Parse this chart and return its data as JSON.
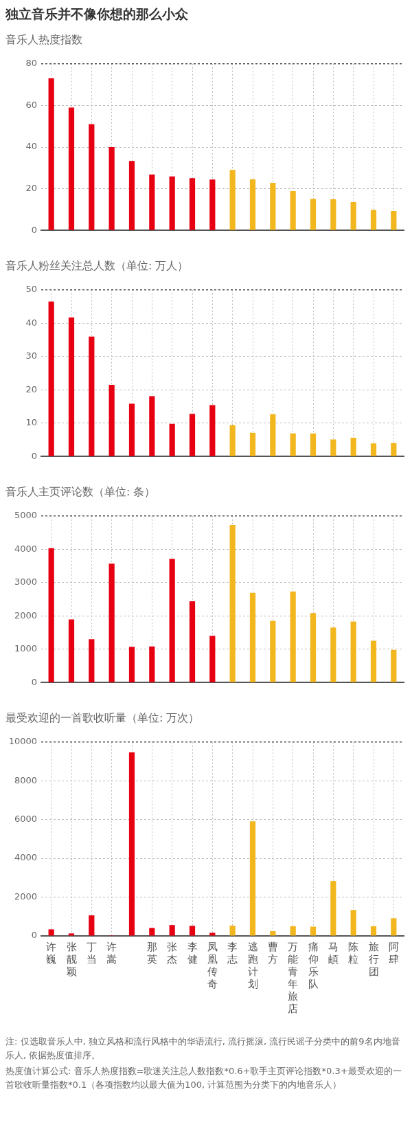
{
  "chart_data": [
    {
      "type": "bar",
      "title": "独立音乐并不像你想的那么小众",
      "subtitle": "音乐人热度指数",
      "categories": [
        "许巍",
        "张靓颖",
        "丁当",
        "许嵩",
        null,
        "那英",
        "张杰",
        "李健",
        "凤凰传奇",
        "李志",
        "逃跑计划",
        "曹方",
        "万能青年旅店",
        "痛仰乐队",
        "马頔",
        "陈粒",
        "旅行团",
        "阿肆"
      ],
      "values": [
        73,
        59,
        51,
        40,
        33.3,
        26.8,
        25.9,
        25.1,
        24.4,
        29,
        24.5,
        22.8,
        18.9,
        15.1,
        14.9,
        13.6,
        9.8,
        9.3
      ],
      "colors": [
        "#e60012",
        "#e60012",
        "#e60012",
        "#e60012",
        "#e60012",
        "#e60012",
        "#e60012",
        "#e60012",
        "#e60012",
        "#f2b61e",
        "#f2b61e",
        "#f2b61e",
        "#f2b61e",
        "#f2b61e",
        "#f2b61e",
        "#f2b61e",
        "#f2b61e",
        "#f2b61e"
      ],
      "ylim": [
        0,
        80
      ],
      "yticks": [
        0,
        20,
        40,
        60,
        80
      ],
      "grid": true,
      "tick_labels": "y"
    },
    {
      "type": "bar",
      "title": "音乐人粉丝关注总人数（单位: 万人）",
      "categories": [
        "许巍",
        "张靓颖",
        "丁当",
        "许嵩",
        null,
        "那英",
        "张杰",
        "李健",
        "凤凰传奇",
        "李志",
        "逃跑计划",
        "曹方",
        "万能青年旅店",
        "痛仰乐队",
        "马頔",
        "陈粒",
        "旅行团",
        "阿肆"
      ],
      "values": [
        46.5,
        41.7,
        36,
        21.5,
        15.8,
        18.1,
        9.8,
        12.8,
        15.4,
        9.4,
        7.1,
        12.7,
        6.9,
        6.9,
        5.1,
        5.6,
        3.9,
        4
      ],
      "colors": [
        "#e60012",
        "#e60012",
        "#e60012",
        "#e60012",
        "#e60012",
        "#e60012",
        "#e60012",
        "#e60012",
        "#e60012",
        "#f2b61e",
        "#f2b61e",
        "#f2b61e",
        "#f2b61e",
        "#f2b61e",
        "#f2b61e",
        "#f2b61e",
        "#f2b61e",
        "#f2b61e"
      ],
      "ylim": [
        0,
        50
      ],
      "yticks": [
        0,
        10,
        20,
        30,
        40,
        50
      ],
      "grid": true,
      "tick_labels": "y"
    },
    {
      "type": "bar",
      "title": "音乐人主页评论数（单位: 条）",
      "categories": [
        "许巍",
        "张靓颖",
        "丁当",
        "许嵩",
        null,
        "那英",
        "张杰",
        "李健",
        "凤凰传奇",
        "李志",
        "逃跑计划",
        "曹方",
        "万能青年旅店",
        "痛仰乐队",
        "马頔",
        "陈粒",
        "旅行团",
        "阿肆"
      ],
      "values": [
        4030,
        1890,
        1300,
        3570,
        1070,
        1080,
        3710,
        2440,
        1400,
        4730,
        2690,
        1850,
        2730,
        2080,
        1650,
        1830,
        1250,
        980
      ],
      "colors": [
        "#e60012",
        "#e60012",
        "#e60012",
        "#e60012",
        "#e60012",
        "#e60012",
        "#e60012",
        "#e60012",
        "#e60012",
        "#f2b61e",
        "#f2b61e",
        "#f2b61e",
        "#f2b61e",
        "#f2b61e",
        "#f2b61e",
        "#f2b61e",
        "#f2b61e",
        "#f2b61e"
      ],
      "ylim": [
        0,
        5000
      ],
      "yticks": [
        0,
        1000,
        2000,
        3000,
        4000,
        5000
      ],
      "grid": true,
      "tick_labels": "y"
    },
    {
      "type": "bar",
      "title": "最受欢迎的一首歌收听量（单位: 万次）",
      "categories": [
        "许巍",
        "张靓颖",
        "丁当",
        "许嵩",
        null,
        "那英",
        "张杰",
        "李健",
        "凤凰传奇",
        "李志",
        "逃跑计划",
        "曹方",
        "万能青年旅店",
        "痛仰乐队",
        "马頔",
        "陈粒",
        "旅行团",
        "阿肆"
      ],
      "values": [
        340,
        130,
        1060,
        30,
        9470,
        410,
        560,
        520,
        160,
        530,
        5910,
        250,
        500,
        480,
        2830,
        1340,
        500,
        910
      ],
      "colors": [
        "#e60012",
        "#e60012",
        "#e60012",
        "#e60012",
        "#e60012",
        "#e60012",
        "#e60012",
        "#e60012",
        "#e60012",
        "#f2b61e",
        "#f2b61e",
        "#f2b61e",
        "#f2b61e",
        "#f2b61e",
        "#f2b61e",
        "#f2b61e",
        "#f2b61e",
        "#f2b61e"
      ],
      "ylim": [
        0,
        10000
      ],
      "yticks": [
        0,
        2000,
        4000,
        6000,
        8000,
        10000
      ],
      "grid": true,
      "annotations": [
        "注: 仅选取音乐人中, 独立风格和流行风格中的华语流行, 流行摇滚, 流行民谣子分类中的前9名内地音乐人, 依据热度值排序。",
        "热度值计算公式: 音乐人热度指数=歌迷关注总人数指数*0.6+歌手主页评论指数*0.3+最受欢迎的一首歌收听量指数*0.1（各项指数均以最大值为100, 计算范围为分类下的内地音乐人）"
      ]
    }
  ]
}
